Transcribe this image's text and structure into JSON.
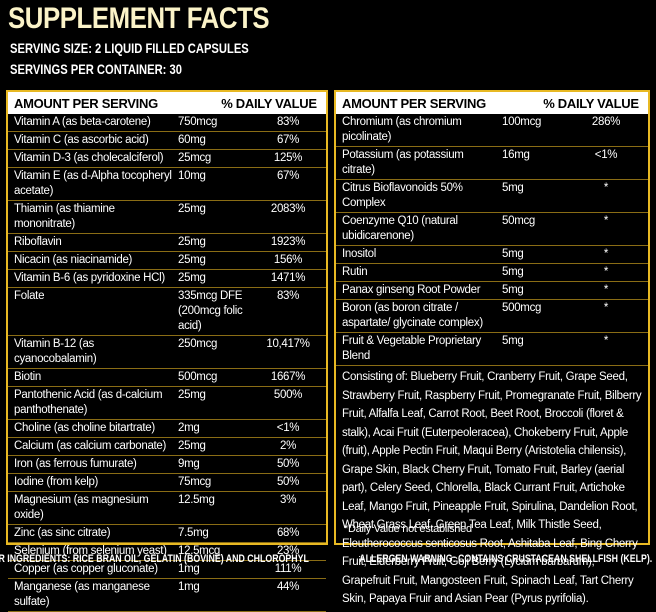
{
  "header": {
    "title": "SUPPLEMENT FACTS",
    "serving_size": "SERVING SIZE: 2 LIQUID FILLED CAPSULES",
    "servings_per_container": "SERVINGS PER CONTAINER: 30"
  },
  "left_table": {
    "columns": [
      "AMOUNT PER SERVING",
      "% DAILY VALUE"
    ],
    "rows": [
      [
        "Vitamin A (as beta-carotene)",
        "750mcg",
        "83%"
      ],
      [
        "Vitamin C (as ascorbic acid)",
        "60mg",
        "67%"
      ],
      [
        "Vitamin D-3 (as cholecalciferol)",
        "25mcg",
        "125%"
      ],
      [
        "Vitamin E (as d-Alpha tocopheryl acetate)",
        "10mg",
        "67%"
      ],
      [
        "Thiamin (as thiamine mononitrate)",
        "25mg",
        "2083%"
      ],
      [
        "Riboflavin",
        "25mg",
        "1923%"
      ],
      [
        "Nicacin (as niacinamide)",
        "25mg",
        "156%"
      ],
      [
        "Vitamin B-6 (as pyridoxine HCl)",
        "25mg",
        "1471%"
      ],
      [
        "Folate",
        "335mcg DFE (200mcg folic acid)",
        "83%"
      ],
      [
        "Vitamin B-12 (as cyanocobalamin)",
        "250mcg",
        "10,417%"
      ],
      [
        "Biotin",
        "500mcg",
        "1667%"
      ],
      [
        "Pantothenic Acid (as d-calcium panthothenate)",
        "25mg",
        "500%"
      ],
      [
        "Choline (as choline bitartrate)",
        "2mg",
        "<1%"
      ],
      [
        "Calcium (as calcium carbonate)",
        "25mg",
        "2%"
      ],
      [
        "Iron (as ferrous fumurate)",
        "9mg",
        "50%"
      ],
      [
        "Iodine (from kelp)",
        "75mcg",
        "50%"
      ],
      [
        "Magnesium (as magnesium oxide)",
        "12.5mg",
        "3%"
      ],
      [
        "Zinc (as sinc citrate)",
        "7.5mg",
        "68%"
      ],
      [
        "Selenium (from selenium yeast)",
        "12.5mcg",
        "23%"
      ],
      [
        "Copper (as copper gluconate)",
        "1mg",
        "111%"
      ],
      [
        "Manganese (as manganese sulfate)",
        "1mg",
        "44%"
      ]
    ]
  },
  "right_table": {
    "columns": [
      "AMOUNT PER SERVING",
      "% DAILY VALUE"
    ],
    "rows": [
      [
        "Chromium (as chromium picolinate)",
        "100mcg",
        "286%"
      ],
      [
        "Potassium (as potassium citrate)",
        "16mg",
        "<1%"
      ],
      [
        "Citrus Bioflavonoids 50% Complex",
        "5mg",
        "*"
      ],
      [
        "Coenzyme Q10 (natural ubidicarenone)",
        "50mcg",
        "*"
      ],
      [
        "Inositol",
        "5mg",
        "*"
      ],
      [
        "Rutin",
        "5mg",
        "*"
      ],
      [
        "Panax ginseng Root Powder",
        "5mg",
        "*"
      ],
      [
        "Boron (as boron citrate / aspartate/ glycinate complex)",
        "500mcg",
        "*"
      ],
      [
        "Fruit & Vegetable Proprietary Blend",
        "5mg",
        "*"
      ]
    ],
    "blend": "Consisting of: Blueberry Fruit, Cranberry Fruit, Grape Seed, Strawberry Fruit, Raspberry Fruit, Promegranate Fruit, Bilberry Fruit, Alfalfa Leaf, Carrot Root, Beet Root, Broccoli (floret & stalk), Acai Fruit (Euterpeoleracea), Chokeberry Fruit, Apple (fruit), Apple Pectin Fruit, Maqui Berry (Aristotelia chilensis), Grape Skin, Black Cherry Fruit, Tomato Fruit, Barley (aerial part), Celery Seed, Chlorella, Black Currant Fruit, Artichoke Leaf, Mango Fruit, Pineapple Fruit, Spirulina, Dandelion Root, Wheat Grass Leaf, Green Tea Leaf, Milk Thistle Seed, Eleutherococcus senticosus Root, Ashitaba Leaf, Bing Cherry Fruit, Elderberry Fruit, Goji Berry (Lycium barbarum), Grapefruit Fruit, Mangosteen Fruit, Spinach Leaf, Tart Cherry Skin, Papaya Fruir and Asian Pear (Pyrus pyrifolia).",
    "footnote": "*Daily Value not established"
  },
  "footer": {
    "other_ingredients": "OTHER INGREDIENTS: RICE BRAN OIL, GELATIN (BOVINE) AND CHLOROPHYL",
    "allergen": "ALLERGEN WARNING: CONTAINS CRUSTACEAN SHELLFISH (KELP)."
  }
}
